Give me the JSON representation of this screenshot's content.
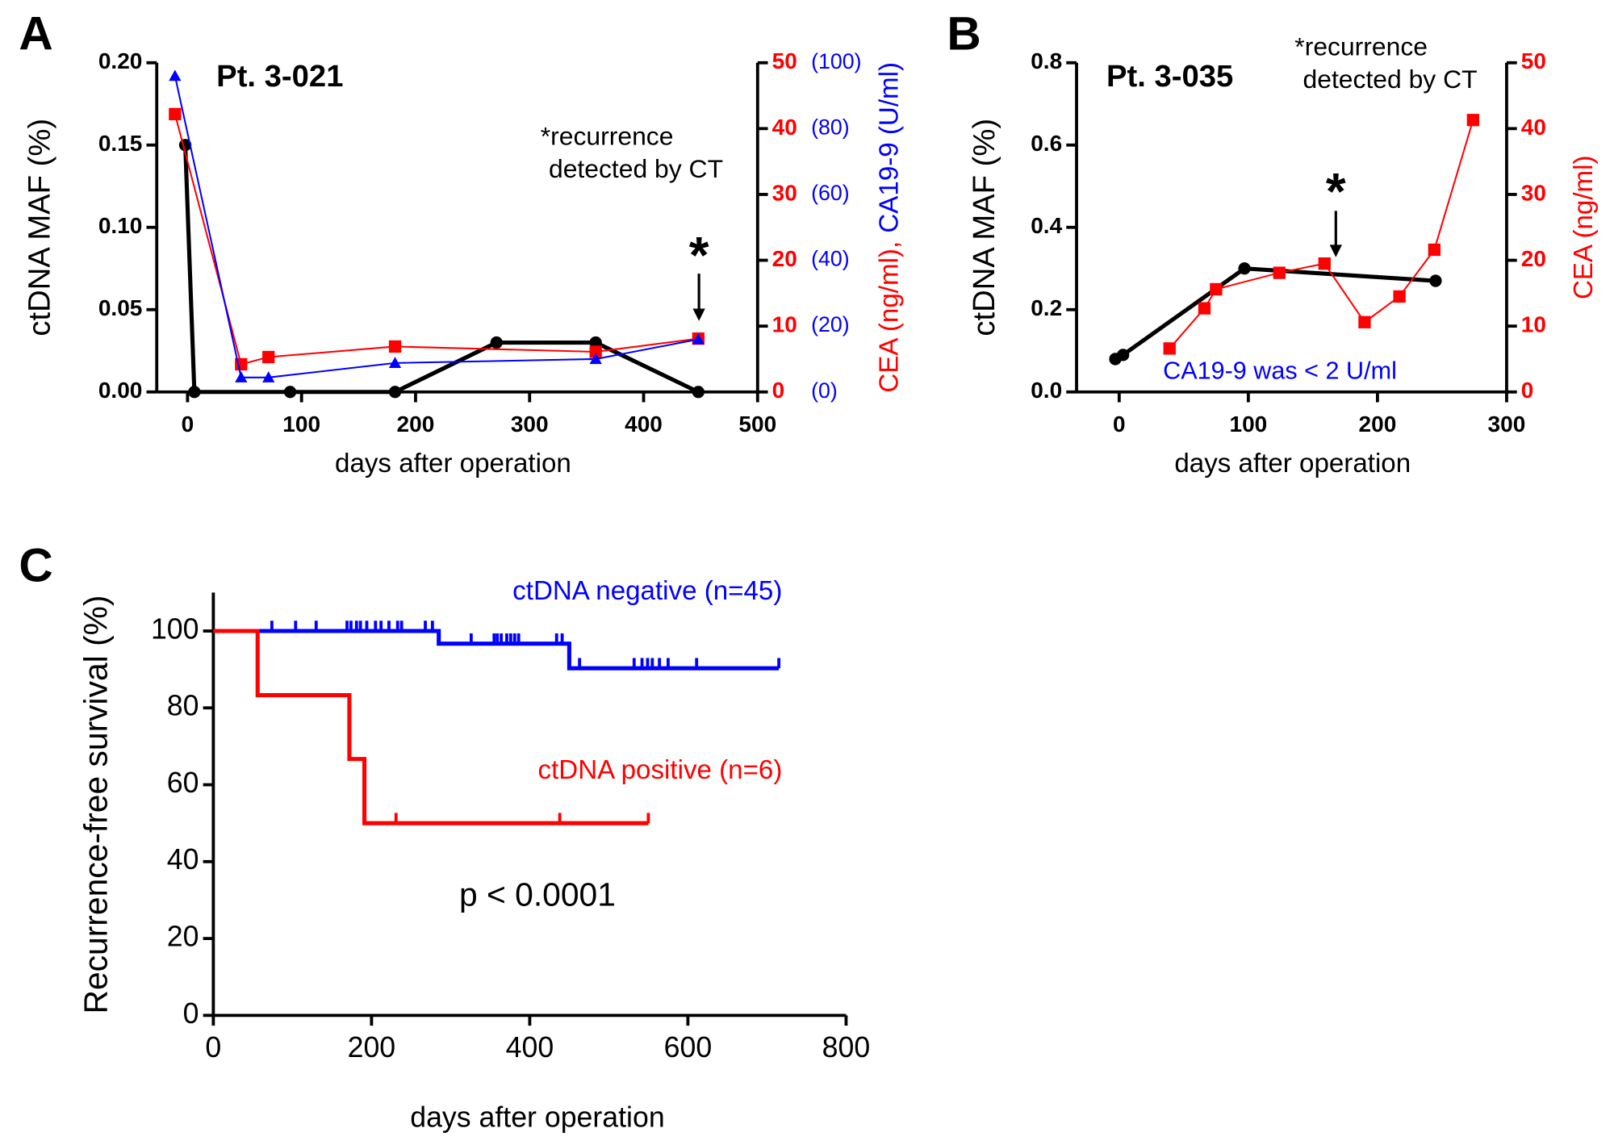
{
  "chart_data": [
    {
      "type": "line",
      "panel": "A",
      "title": "Pt. 3-021",
      "annotation": [
        "*recurrence",
        "detected by CT"
      ],
      "marker_text": "*",
      "xlabel": "days after operation",
      "ylabel": "ctDNA MAF (%)",
      "y2label": [
        "CEA (ng/ml),",
        "CA19-9 (U/ml)"
      ],
      "xlim": [
        -27,
        500
      ],
      "xticks": [
        0,
        100,
        200,
        300,
        400,
        500
      ],
      "ylim": [
        0,
        0.2
      ],
      "yticks": [
        {
          "value": 0,
          "label": "0.00"
        },
        {
          "value": 0.05,
          "label": "0.05"
        },
        {
          "value": 0.1,
          "label": "0.10"
        },
        {
          "value": 0.15,
          "label": "0.15"
        },
        {
          "value": 0.2,
          "label": "0.20"
        }
      ],
      "y2lim": [
        0,
        50
      ],
      "y2ticks": [
        0,
        10,
        20,
        30,
        40,
        50
      ],
      "y2color": "#ff0000",
      "y3lim": [
        0,
        100
      ],
      "y3ticks": [
        {
          "value": 0,
          "label": "(0)"
        },
        {
          "value": 20,
          "label": "(20)"
        },
        {
          "value": 40,
          "label": "(40)"
        },
        {
          "value": 60,
          "label": "(60)"
        },
        {
          "value": 80,
          "label": "(80)"
        },
        {
          "value": 100,
          "label": "(100)"
        }
      ],
      "y3color": "#0000ff",
      "series": [
        {
          "color": "#000000",
          "marker": "circle",
          "x": [
            -2,
            6,
            90,
            182,
            271,
            358,
            448
          ],
          "values": [
            0.15,
            0,
            0,
            0,
            0.03,
            0.03,
            0
          ]
        },
        {
          "color": "#ff0000",
          "marker": "square",
          "axis": "y2",
          "x": [
            -11,
            47,
            71,
            182,
            358,
            448
          ],
          "values": [
            42.2,
            4.2,
            5.3,
            6.9,
            6.1,
            8.1
          ]
        },
        {
          "color": "#0000ff",
          "marker": "triangle",
          "axis": "y3",
          "x": [
            -11,
            47,
            71,
            182,
            358,
            448
          ],
          "values": [
            96,
            4.4,
            4.4,
            8.8,
            10,
            16
          ]
        }
      ]
    },
    {
      "type": "line",
      "panel": "B",
      "title": "Pt. 3-035",
      "annotation": [
        "*recurrence",
        "detected by CT"
      ],
      "marker_text": "*",
      "note": "CA19-9 was < 2 U/ml",
      "note_color": "#0000ff",
      "xlabel": "days after operation",
      "ylabel": "ctDNA MAF (%)",
      "y2label": [
        "CEA (ng/ml)"
      ],
      "xlim": [
        -33,
        300
      ],
      "xticks": [
        0,
        100,
        200,
        300
      ],
      "ylim": [
        0,
        0.8
      ],
      "yticks": [
        {
          "value": 0,
          "label": "0.0"
        },
        {
          "value": 0.2,
          "label": "0.2"
        },
        {
          "value": 0.4,
          "label": "0.4"
        },
        {
          "value": 0.6,
          "label": "0.6"
        },
        {
          "value": 0.8,
          "label": "0.8"
        }
      ],
      "y2lim": [
        0,
        50
      ],
      "y2ticks": [
        0,
        10,
        20,
        30,
        40,
        50
      ],
      "y2color": "#ff0000",
      "series": [
        {
          "color": "#000000",
          "marker": "circle",
          "x": [
            -3,
            3,
            97,
            245
          ],
          "values": [
            0.08,
            0.09,
            0.3,
            0.27
          ]
        },
        {
          "color": "#ff0000",
          "marker": "square",
          "axis": "y2",
          "x": [
            39,
            66,
            75,
            124,
            159,
            190,
            217,
            244,
            274
          ],
          "values": [
            6.6,
            12.7,
            15.6,
            18.1,
            19.5,
            10.6,
            14.5,
            21.6,
            41.3
          ]
        }
      ]
    },
    {
      "type": "survival",
      "panel": "C",
      "xlabel": "days after operation",
      "ylabel": "Recurrence-free survival (%)",
      "annotation": "p < 0.0001",
      "xlim": [
        0,
        800
      ],
      "xticks": [
        0,
        200,
        400,
        600,
        800
      ],
      "ylim": [
        0,
        110
      ],
      "yticks": [
        0,
        20,
        40,
        60,
        80,
        100
      ],
      "series": [
        {
          "name": "ctDNA negative (n=45)",
          "color": "#0000ff",
          "x": [
            0,
            285,
            450
          ],
          "values": [
            100,
            96.7,
            90.3
          ],
          "censored": [
            74,
            104,
            130,
            169,
            174,
            181,
            186,
            194,
            205,
            212,
            222,
            233,
            238,
            268,
            277,
            326,
            355,
            359,
            364,
            371,
            376,
            381,
            386,
            434,
            441,
            463,
            532,
            542,
            549,
            555,
            564,
            575,
            611,
            715
          ]
        },
        {
          "name": "ctDNA positive (n=6)",
          "color": "#ff0000",
          "x": [
            0,
            56,
            172,
            191
          ],
          "values": [
            100,
            83.3,
            66.7,
            50
          ],
          "censored": [
            231,
            438,
            550
          ]
        }
      ]
    }
  ]
}
